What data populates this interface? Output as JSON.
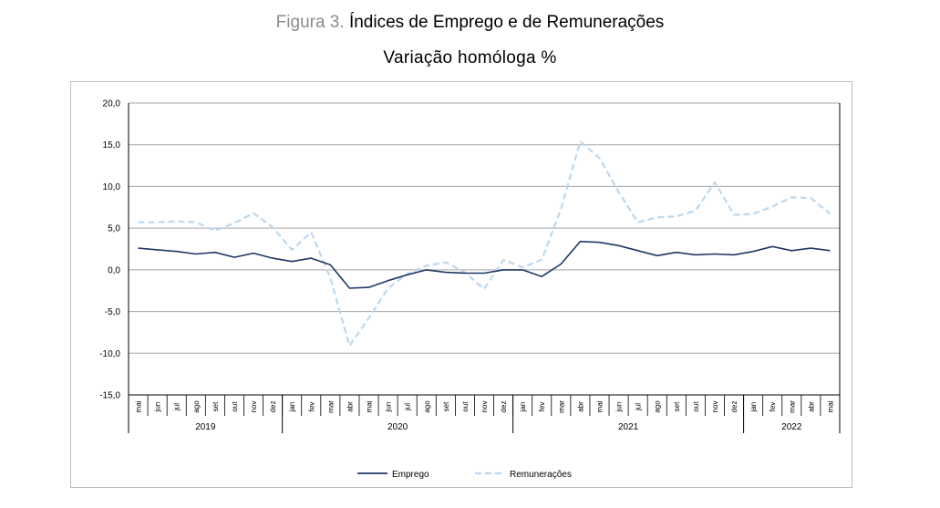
{
  "figure": {
    "number": "Figura 3.",
    "title": "Índices de Emprego e de Remunerações",
    "subtitle": "Variação homóloga %"
  },
  "chart_data": {
    "type": "line",
    "title": "Índices de Emprego e de Remunerações",
    "subtitle": "Variação homóloga %",
    "xlabel": "",
    "ylabel": "",
    "ylim": [
      -15,
      20
    ],
    "yticks": [
      "20,0",
      "15,0",
      "10,0",
      "5,0",
      "0,0",
      "-5,0",
      "-10,0",
      "-15,0"
    ],
    "ytick_values": [
      20,
      15,
      10,
      5,
      0,
      -5,
      -10,
      -15
    ],
    "grid": true,
    "legend_position": "bottom-center",
    "x": [
      "mai",
      "jun",
      "jul",
      "ago",
      "set",
      "out",
      "nov",
      "dez",
      "jan",
      "fev",
      "mar",
      "abr",
      "mai",
      "jun",
      "jul",
      "ago",
      "set",
      "out",
      "nov",
      "dez",
      "jan",
      "fev",
      "mar",
      "abr",
      "mai",
      "jun",
      "jul",
      "ago",
      "set",
      "out",
      "nov",
      "dez",
      "jan",
      "fev",
      "mar",
      "abr",
      "mai"
    ],
    "years": [
      {
        "label": "2019",
        "start": 0,
        "end": 7
      },
      {
        "label": "2020",
        "start": 8,
        "end": 19
      },
      {
        "label": "2021",
        "start": 20,
        "end": 31
      },
      {
        "label": "2022",
        "start": 32,
        "end": 36
      }
    ],
    "series": [
      {
        "name": "Emprego",
        "color": "#1f3864",
        "style": "solid",
        "values": [
          2.6,
          2.4,
          2.2,
          1.9,
          2.1,
          1.5,
          2.0,
          1.4,
          1.0,
          1.4,
          0.6,
          -2.2,
          -2.1,
          -1.3,
          -0.6,
          0.0,
          -0.3,
          -0.4,
          -0.4,
          0.0,
          0.0,
          -0.8,
          0.7,
          3.4,
          3.3,
          2.9,
          2.3,
          1.7,
          2.1,
          1.8,
          1.9,
          1.8,
          2.2,
          2.8,
          2.3,
          2.6,
          2.3
        ]
      },
      {
        "name": "Remunerações",
        "color": "#bdd7ee",
        "style": "dashed",
        "values": [
          5.7,
          5.7,
          5.8,
          5.7,
          4.7,
          5.6,
          6.8,
          5.1,
          2.4,
          4.5,
          -1.0,
          -9.1,
          -5.8,
          -2.2,
          -0.5,
          0.5,
          0.9,
          -0.3,
          -2.3,
          1.2,
          0.3,
          1.2,
          7.3,
          15.4,
          13.4,
          9.3,
          5.7,
          6.3,
          6.4,
          7.1,
          10.5,
          6.6,
          6.7,
          7.6,
          8.7,
          8.6,
          6.7
        ]
      }
    ]
  }
}
